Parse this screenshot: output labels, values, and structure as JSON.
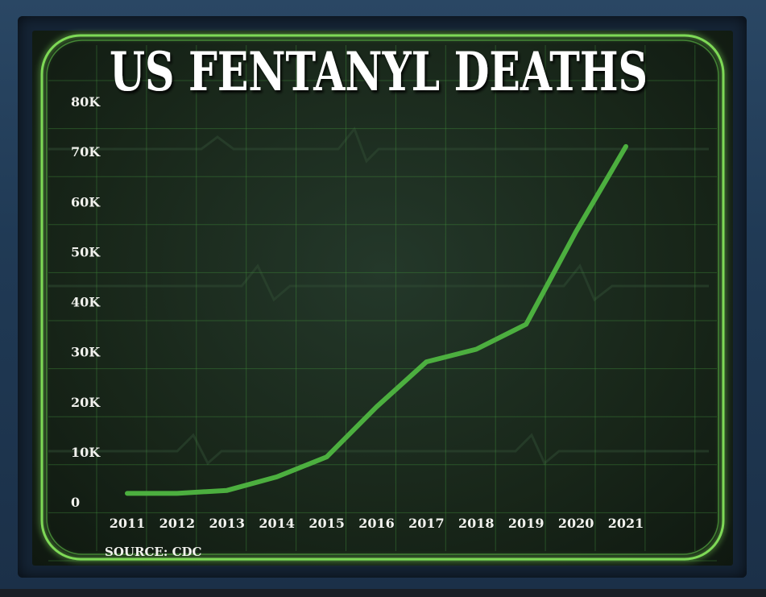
{
  "chart_data": {
    "type": "line",
    "title": "US FENTANYL DEATHS",
    "source": "SOURCE: CDC",
    "x": [
      "2011",
      "2012",
      "2013",
      "2014",
      "2015",
      "2016",
      "2017",
      "2018",
      "2019",
      "2020",
      "2021"
    ],
    "series": [
      {
        "values": [
          1700,
          1700,
          2300,
          5000,
          9000,
          19000,
          28000,
          30500,
          35500,
          54000,
          71000
        ]
      }
    ],
    "y_ticks": [
      "0",
      "10K",
      "20K",
      "30K",
      "40K",
      "50K",
      "60K",
      "70K",
      "80K"
    ],
    "ylim": [
      0,
      80000
    ],
    "grid": true,
    "line_color": "#4caf3f",
    "grid_color": "#3f8a3a",
    "frame_glow_color": "#7ed957"
  }
}
